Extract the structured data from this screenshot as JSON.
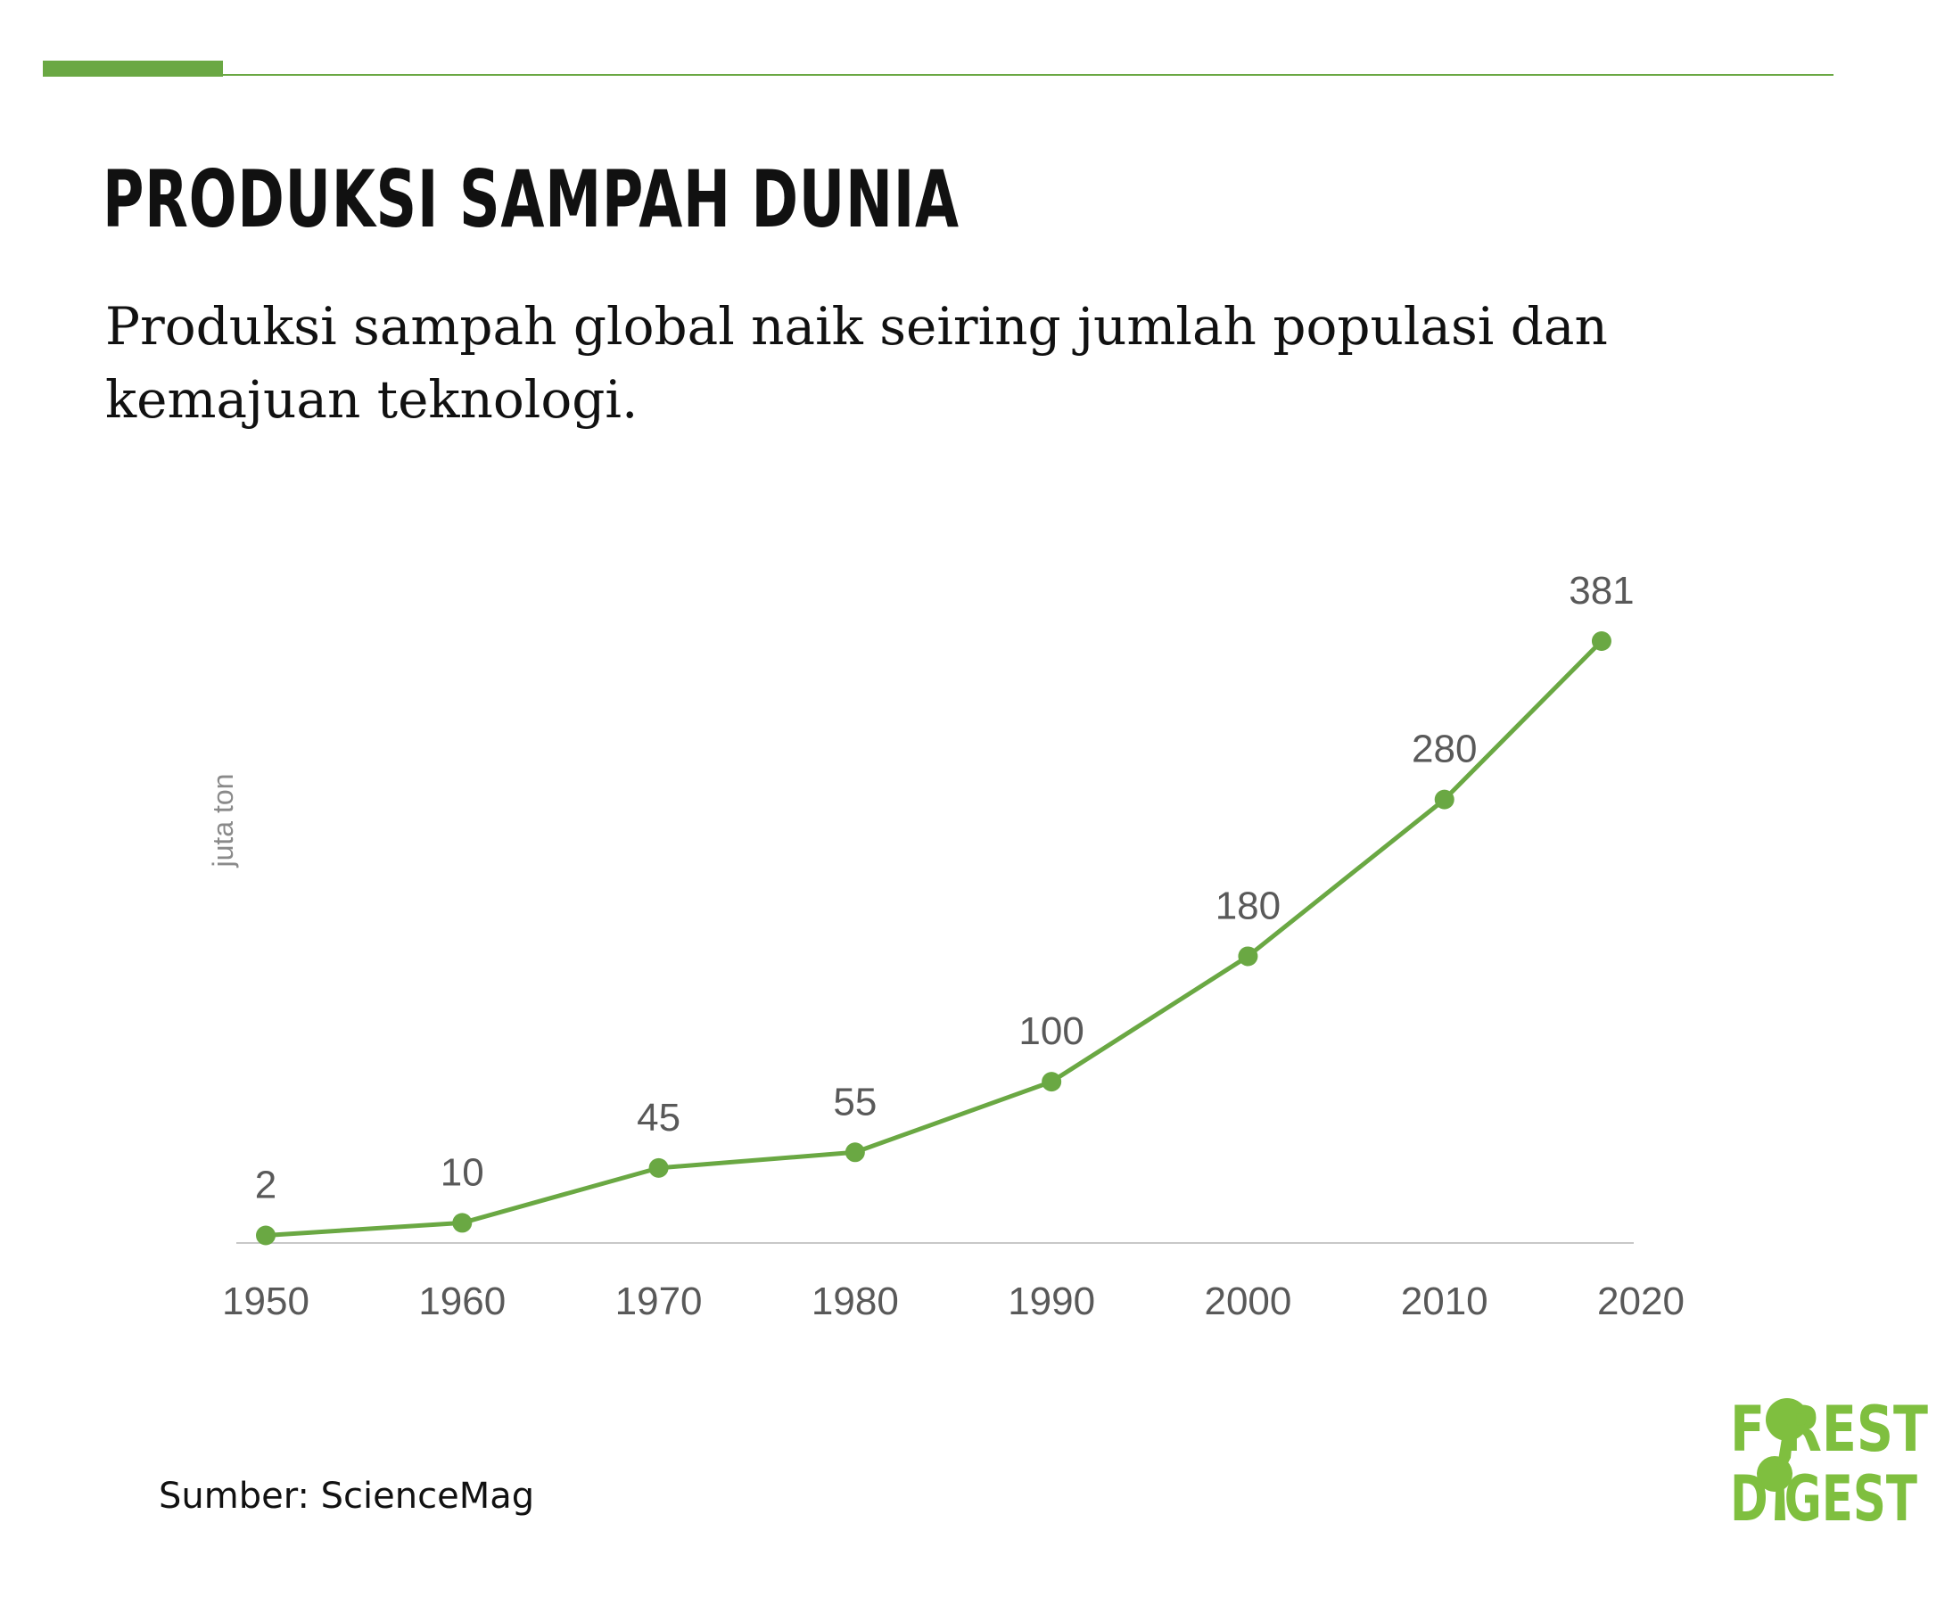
{
  "header": {
    "title": "PRODUKSI SAMPAH DUNIA",
    "subtitle": "Produksi sampah global naik seiring jumlah populasi dan kemajuan teknologi."
  },
  "colors": {
    "accent": "#6aa843",
    "text": "#111111",
    "axis_text": "#595959",
    "axis_line": "#c8c8c8"
  },
  "source": "Sumber: ScienceMag",
  "logo": {
    "line1": "FOREST",
    "line2": "DIGEST"
  },
  "chart_data": {
    "type": "line",
    "title": "",
    "xlabel": "",
    "ylabel": "juta ton",
    "x_ticks": [
      1950,
      1960,
      1970,
      1980,
      1990,
      2000,
      2010,
      2020
    ],
    "xlim": [
      1950,
      2020
    ],
    "ylim": [
      0,
      381
    ],
    "grid": false,
    "series": [
      {
        "x": [
          1950,
          1960,
          1970,
          1980,
          1990,
          2000,
          2010,
          2018
        ],
        "values": [
          2,
          10,
          45,
          55,
          100,
          180,
          280,
          381
        ],
        "labels": [
          "2",
          "10",
          "45",
          "55",
          "100",
          "180",
          "280",
          "381"
        ]
      }
    ]
  }
}
